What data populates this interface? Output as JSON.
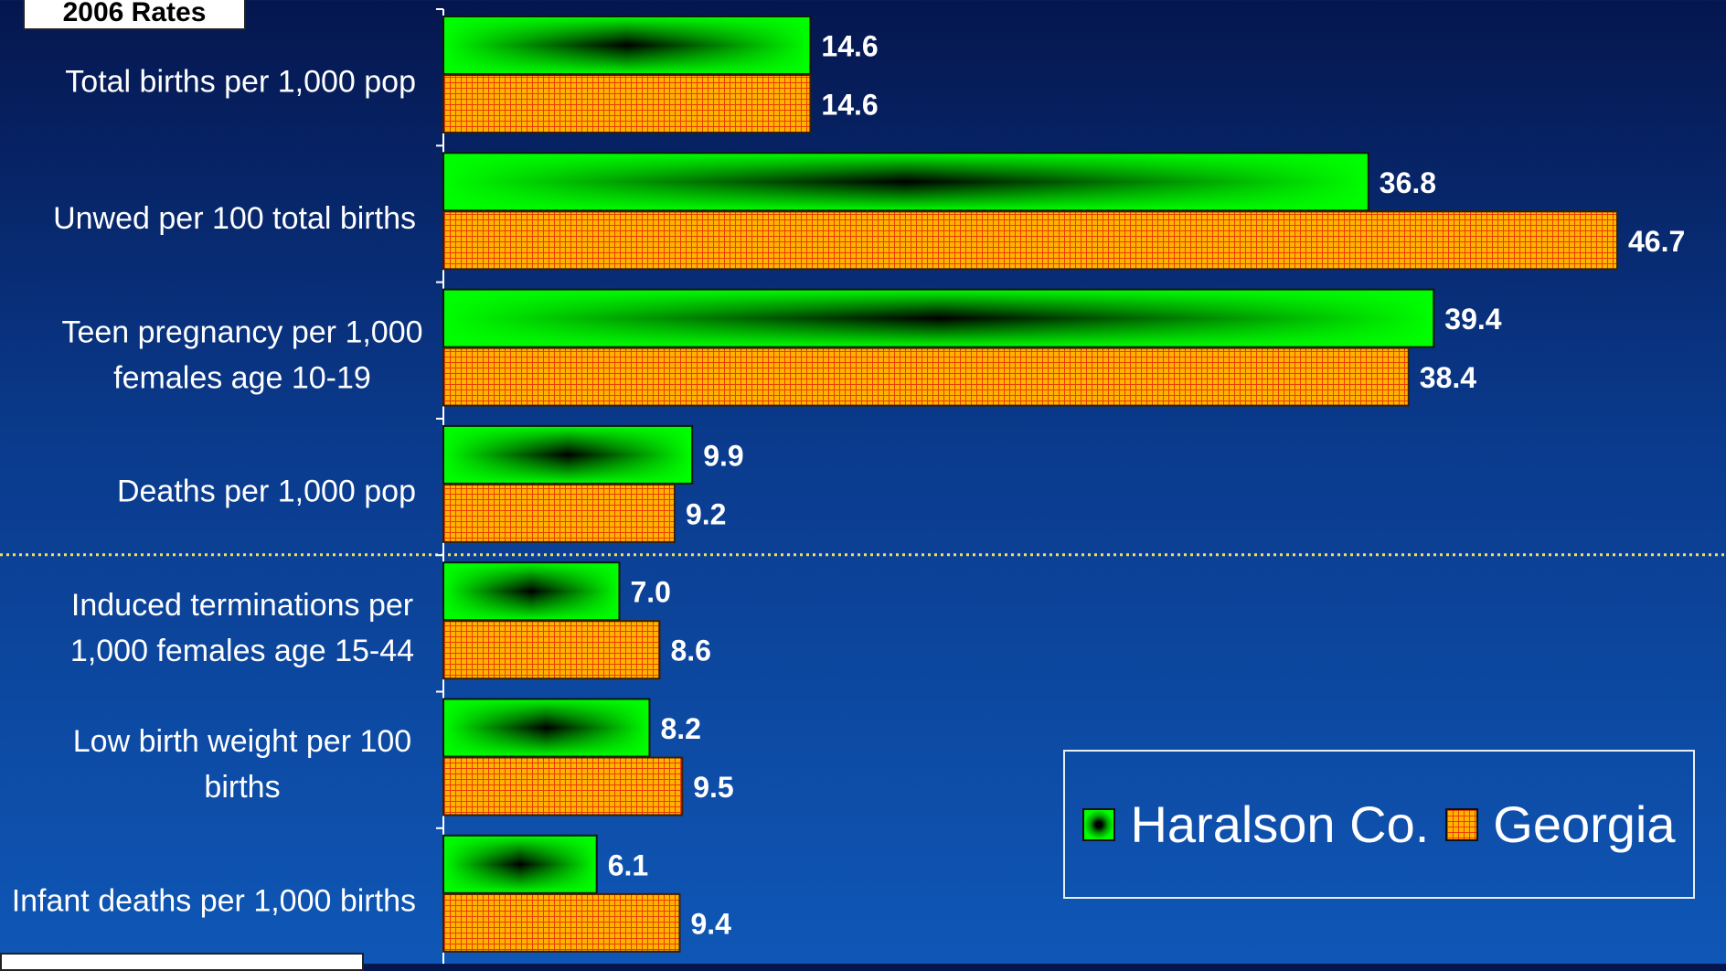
{
  "title_box": "2006 Rates",
  "colors": {
    "haralson": "#00ff00",
    "georgia": "#ffb400",
    "grid": "#ff3000",
    "divider": "#f5e050"
  },
  "chart_data": {
    "type": "bar",
    "orientation": "horizontal",
    "categories": [
      [
        "Total births per 1,000 pop"
      ],
      [
        "Unwed per 100 total births"
      ],
      [
        "Teen pregnancy per 1,000",
        "females age 10-19"
      ],
      [
        "Deaths per 1,000 pop"
      ],
      [
        "Induced terminations per",
        "1,000 females age 15-44"
      ],
      [
        "Low birth weight per 100",
        "births"
      ],
      [
        "Infant deaths per 1,000 births"
      ]
    ],
    "series": [
      {
        "name": "Haralson Co.",
        "values": [
          14.6,
          36.8,
          39.4,
          9.9,
          7.0,
          8.2,
          6.1
        ],
        "labels": [
          "14.6",
          "36.8",
          "39.4",
          "9.9",
          "7.0",
          "8.2",
          "6.1"
        ]
      },
      {
        "name": "Georgia",
        "values": [
          14.6,
          46.7,
          38.4,
          9.2,
          8.6,
          9.5,
          9.4
        ],
        "labels": [
          "14.6",
          "46.7",
          "38.4",
          "9.2",
          "8.6",
          "9.5",
          "9.4"
        ]
      }
    ],
    "xlim": [
      0,
      47.5
    ],
    "legend": "bottom-right",
    "divider_after_category": 3
  }
}
